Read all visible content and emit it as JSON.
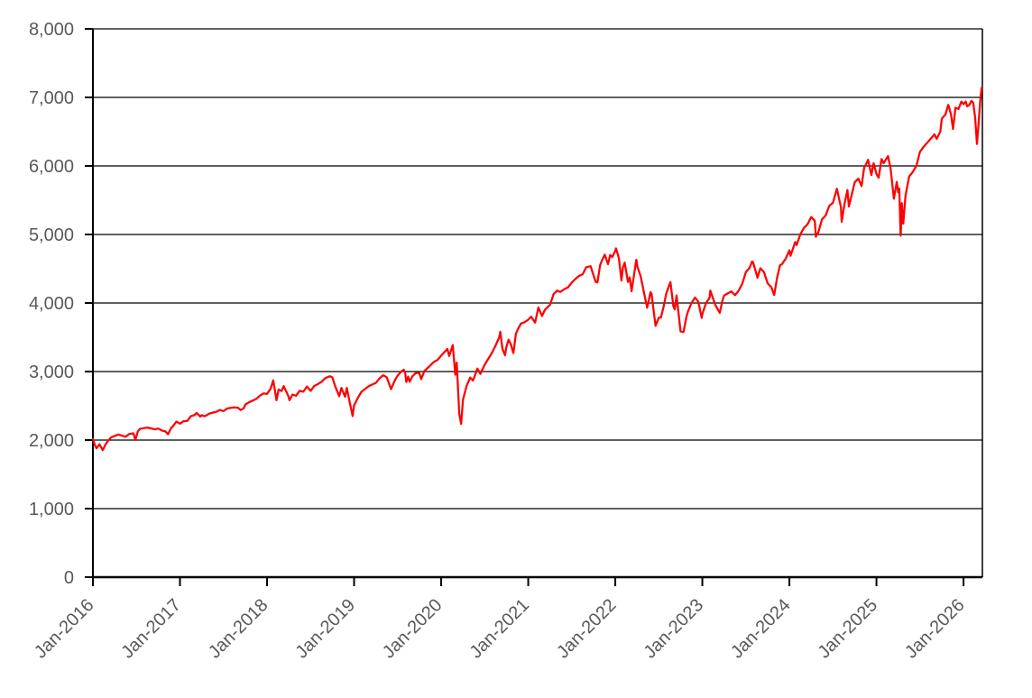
{
  "chart_data": {
    "type": "line",
    "title": "",
    "xlabel": "",
    "ylabel": "",
    "legend": "none",
    "grid": "horizontal-black",
    "background": "#FFFFFF",
    "line_color": "#FF0000",
    "axis_color": "#000000",
    "label_color": "#595959",
    "ylim": [
      0,
      8000
    ],
    "y_axis_step": 1000,
    "y_ticks": [
      0,
      1000,
      2000,
      3000,
      4000,
      5000,
      6000,
      7000,
      8000
    ],
    "y_tick_labels": [
      "0",
      "1,000",
      "2,000",
      "3,000",
      "4,000",
      "5,000",
      "6,000",
      "7,000",
      "8,000"
    ],
    "x_unit": "months since Jan-2016",
    "xlim_months": [
      0,
      122.6
    ],
    "x_tick_months": [
      0,
      12,
      24,
      36,
      48,
      60,
      72,
      84,
      96,
      108,
      120
    ],
    "x_tick_labels": [
      "Jan-2016",
      "Jan-2017",
      "Jan-2018",
      "Jan-2019",
      "Jan-2020",
      "Jan-2021",
      "Jan-2022",
      "Jan-2023",
      "Jan-2024",
      "Jan-2025",
      "Jan-2026"
    ],
    "series": {
      "points": [
        [
          0,
          2012
        ],
        [
          0.3,
          1922
        ],
        [
          0.5,
          1880
        ],
        [
          0.9,
          1940
        ],
        [
          1.35,
          1853
        ],
        [
          1.7,
          1930
        ],
        [
          2,
          1978
        ],
        [
          2.5,
          2040
        ],
        [
          3,
          2060
        ],
        [
          3.5,
          2082
        ],
        [
          4,
          2065
        ],
        [
          4.5,
          2047
        ],
        [
          5,
          2090
        ],
        [
          5.6,
          2099
        ],
        [
          5.85,
          2001
        ],
        [
          6.2,
          2130
        ],
        [
          6.5,
          2165
        ],
        [
          7,
          2174
        ],
        [
          7.5,
          2183
        ],
        [
          8,
          2171
        ],
        [
          8.5,
          2157
        ],
        [
          9,
          2168
        ],
        [
          9.5,
          2140
        ],
        [
          10,
          2126
        ],
        [
          10.35,
          2085
        ],
        [
          10.8,
          2180
        ],
        [
          11,
          2199
        ],
        [
          11.5,
          2270
        ],
        [
          12,
          2239
        ],
        [
          12.5,
          2275
        ],
        [
          13,
          2279
        ],
        [
          13.5,
          2350
        ],
        [
          14,
          2364
        ],
        [
          14.3,
          2396
        ],
        [
          14.8,
          2344
        ],
        [
          15,
          2363
        ],
        [
          15.4,
          2348
        ],
        [
          16,
          2384
        ],
        [
          16.5,
          2400
        ],
        [
          17,
          2412
        ],
        [
          17.5,
          2440
        ],
        [
          18,
          2423
        ],
        [
          18.5,
          2460
        ],
        [
          19,
          2470
        ],
        [
          19.5,
          2478
        ],
        [
          20,
          2472
        ],
        [
          20.35,
          2438
        ],
        [
          20.8,
          2465
        ],
        [
          21,
          2519
        ],
        [
          21.5,
          2550
        ],
        [
          22,
          2575
        ],
        [
          22.5,
          2600
        ],
        [
          23,
          2648
        ],
        [
          23.5,
          2680
        ],
        [
          24,
          2674
        ],
        [
          24.5,
          2750
        ],
        [
          24.85,
          2873
        ],
        [
          25.3,
          2581
        ],
        [
          25.6,
          2740
        ],
        [
          26,
          2714
        ],
        [
          26.3,
          2787
        ],
        [
          26.95,
          2641
        ],
        [
          27.1,
          2582
        ],
        [
          27.5,
          2663
        ],
        [
          28,
          2648
        ],
        [
          28.5,
          2720
        ],
        [
          29,
          2705
        ],
        [
          29.5,
          2782
        ],
        [
          30,
          2718
        ],
        [
          30.5,
          2790
        ],
        [
          31,
          2816
        ],
        [
          31.5,
          2850
        ],
        [
          32,
          2902
        ],
        [
          32.65,
          2931
        ],
        [
          33,
          2914
        ],
        [
          33.4,
          2785
        ],
        [
          33.95,
          2641
        ],
        [
          34.25,
          2760
        ],
        [
          34.75,
          2632
        ],
        [
          35,
          2760
        ],
        [
          35.3,
          2600
        ],
        [
          35.8,
          2351
        ],
        [
          36,
          2507
        ],
        [
          36.5,
          2610
        ],
        [
          37,
          2704
        ],
        [
          37.5,
          2745
        ],
        [
          38,
          2784
        ],
        [
          38.5,
          2810
        ],
        [
          39,
          2834
        ],
        [
          39.5,
          2900
        ],
        [
          40,
          2946
        ],
        [
          40.5,
          2917
        ],
        [
          41.1,
          2744
        ],
        [
          41.4,
          2820
        ],
        [
          41.7,
          2890
        ],
        [
          42,
          2942
        ],
        [
          42.5,
          3000
        ],
        [
          42.85,
          3026
        ],
        [
          43.05,
          2980
        ],
        [
          43.2,
          2847
        ],
        [
          43.45,
          2925
        ],
        [
          43.65,
          2850
        ],
        [
          44,
          2926
        ],
        [
          44.5,
          2980
        ],
        [
          45,
          2977
        ],
        [
          45.25,
          2888
        ],
        [
          45.7,
          3010
        ],
        [
          46,
          3038
        ],
        [
          46.5,
          3090
        ],
        [
          47,
          3141
        ],
        [
          47.5,
          3170
        ],
        [
          48,
          3231
        ],
        [
          48.5,
          3290
        ],
        [
          48.85,
          3330
        ],
        [
          49.1,
          3226
        ],
        [
          49.6,
          3386
        ],
        [
          49.95,
          2954
        ],
        [
          50.15,
          3130
        ],
        [
          50.5,
          2386
        ],
        [
          50.75,
          2237
        ],
        [
          51,
          2585
        ],
        [
          51.5,
          2790
        ],
        [
          52,
          2912
        ],
        [
          52.4,
          2870
        ],
        [
          53,
          3044
        ],
        [
          53.4,
          2966
        ],
        [
          54,
          3100
        ],
        [
          54.5,
          3185
        ],
        [
          55,
          3271
        ],
        [
          55.5,
          3380
        ],
        [
          56,
          3500
        ],
        [
          56.15,
          3580
        ],
        [
          56.45,
          3331
        ],
        [
          56.8,
          3237
        ],
        [
          57,
          3363
        ],
        [
          57.3,
          3465
        ],
        [
          57.6,
          3400
        ],
        [
          57.95,
          3270
        ],
        [
          58.3,
          3550
        ],
        [
          58.6,
          3622
        ],
        [
          59,
          3700
        ],
        [
          59.5,
          3720
        ],
        [
          60,
          3756
        ],
        [
          60.4,
          3800
        ],
        [
          60.95,
          3714
        ],
        [
          61.4,
          3935
        ],
        [
          61.9,
          3811
        ],
        [
          62.3,
          3900
        ],
        [
          62.7,
          3943
        ],
        [
          63,
          3973
        ],
        [
          63.5,
          4130
        ],
        [
          64,
          4181
        ],
        [
          64.4,
          4160
        ],
        [
          65,
          4204
        ],
        [
          65.5,
          4230
        ],
        [
          66,
          4298
        ],
        [
          66.5,
          4350
        ],
        [
          67,
          4395
        ],
        [
          67.5,
          4420
        ],
        [
          68,
          4523
        ],
        [
          68.6,
          4537
        ],
        [
          69.3,
          4308
        ],
        [
          69.55,
          4300
        ],
        [
          69.9,
          4550
        ],
        [
          70.1,
          4605
        ],
        [
          70.55,
          4705
        ],
        [
          71,
          4567
        ],
        [
          71.3,
          4700
        ],
        [
          71.6,
          4670
        ],
        [
          72,
          4766
        ],
        [
          72.1,
          4797
        ],
        [
          72.5,
          4650
        ],
        [
          72.85,
          4327
        ],
        [
          73.05,
          4516
        ],
        [
          73.3,
          4590
        ],
        [
          73.75,
          4306
        ],
        [
          74,
          4374
        ],
        [
          74.25,
          4171
        ],
        [
          74.9,
          4631
        ],
        [
          75.05,
          4530
        ],
        [
          75.5,
          4390
        ],
        [
          76,
          4132
        ],
        [
          76.4,
          3930
        ],
        [
          76.85,
          4158
        ],
        [
          77,
          4132
        ],
        [
          77.45,
          3750
        ],
        [
          77.55,
          3667
        ],
        [
          78,
          3785
        ],
        [
          78.3,
          3790
        ],
        [
          78.7,
          3962
        ],
        [
          79,
          4130
        ],
        [
          79.5,
          4280
        ],
        [
          79.6,
          4305
        ],
        [
          80,
          3955
        ],
        [
          80.2,
          3908
        ],
        [
          80.45,
          4110
        ],
        [
          81,
          3586
        ],
        [
          81.4,
          3577
        ],
        [
          81.8,
          3798
        ],
        [
          82,
          3872
        ],
        [
          82.5,
          4000
        ],
        [
          83,
          4080
        ],
        [
          83.45,
          4019
        ],
        [
          83.9,
          3783
        ],
        [
          84,
          3840
        ],
        [
          84.5,
          3999
        ],
        [
          85,
          4077
        ],
        [
          85.1,
          4180
        ],
        [
          85.8,
          3970
        ],
        [
          86.4,
          3856
        ],
        [
          86.8,
          4050
        ],
        [
          87,
          4109
        ],
        [
          87.5,
          4140
        ],
        [
          88,
          4169
        ],
        [
          88.5,
          4115
        ],
        [
          89,
          4180
        ],
        [
          89.5,
          4282
        ],
        [
          90,
          4450
        ],
        [
          90.5,
          4510
        ],
        [
          90.85,
          4607
        ],
        [
          91,
          4589
        ],
        [
          91.6,
          4370
        ],
        [
          92,
          4508
        ],
        [
          92.5,
          4450
        ],
        [
          93,
          4288
        ],
        [
          93.5,
          4230
        ],
        [
          93.9,
          4117
        ],
        [
          94.3,
          4365
        ],
        [
          94.7,
          4550
        ],
        [
          95,
          4568
        ],
        [
          95.5,
          4650
        ],
        [
          96,
          4770
        ],
        [
          96.15,
          4688
        ],
        [
          96.8,
          4890
        ],
        [
          97,
          4846
        ],
        [
          97.5,
          5000
        ],
        [
          98,
          5096
        ],
        [
          98.5,
          5150
        ],
        [
          99,
          5254
        ],
        [
          99.5,
          5200
        ],
        [
          99.65,
          4967
        ],
        [
          100,
          5036
        ],
        [
          100.5,
          5222
        ],
        [
          101,
          5278
        ],
        [
          101.5,
          5420
        ],
        [
          102,
          5460
        ],
        [
          102.55,
          5667
        ],
        [
          103.1,
          5399
        ],
        [
          103.2,
          5186
        ],
        [
          103.6,
          5450
        ],
        [
          104,
          5648
        ],
        [
          104.2,
          5408
        ],
        [
          105,
          5762
        ],
        [
          105.5,
          5815
        ],
        [
          105.95,
          5705
        ],
        [
          106.3,
          5973
        ],
        [
          106.6,
          6032
        ],
        [
          106.85,
          6090
        ],
        [
          107.3,
          5867
        ],
        [
          107.6,
          6040
        ],
        [
          108,
          5882
        ],
        [
          108.3,
          5827
        ],
        [
          108.7,
          6100
        ],
        [
          109,
          6041
        ],
        [
          109.6,
          6144
        ],
        [
          109.95,
          5955
        ],
        [
          110.4,
          5521
        ],
        [
          110.8,
          5767
        ],
        [
          111,
          5612
        ],
        [
          111.15,
          5671
        ],
        [
          111.3,
          5074
        ],
        [
          111.35,
          4983
        ],
        [
          111.5,
          5457
        ],
        [
          111.7,
          5158
        ],
        [
          112,
          5569
        ],
        [
          112.5,
          5845
        ],
        [
          113,
          5912
        ],
        [
          113.5,
          6000
        ],
        [
          114,
          6205
        ],
        [
          114.5,
          6280
        ],
        [
          115,
          6339
        ],
        [
          115.5,
          6400
        ],
        [
          116,
          6460
        ],
        [
          116.3,
          6395
        ],
        [
          116.8,
          6502
        ],
        [
          117,
          6688
        ],
        [
          117.5,
          6750
        ],
        [
          117.9,
          6891
        ],
        [
          118.05,
          6840
        ],
        [
          118.3,
          6737
        ],
        [
          118.55,
          6539
        ],
        [
          118.9,
          6849
        ],
        [
          119.3,
          6830
        ],
        [
          119.7,
          6939
        ],
        [
          120,
          6900
        ],
        [
          120.3,
          6940
        ],
        [
          120.5,
          6870
        ],
        [
          120.8,
          6890
        ],
        [
          121.1,
          6950
        ],
        [
          121.35,
          6920
        ],
        [
          121.6,
          6700
        ],
        [
          121.85,
          6320
        ],
        [
          122.1,
          6650
        ],
        [
          122.3,
          6950
        ],
        [
          122.5,
          7140
        ]
      ]
    }
  }
}
